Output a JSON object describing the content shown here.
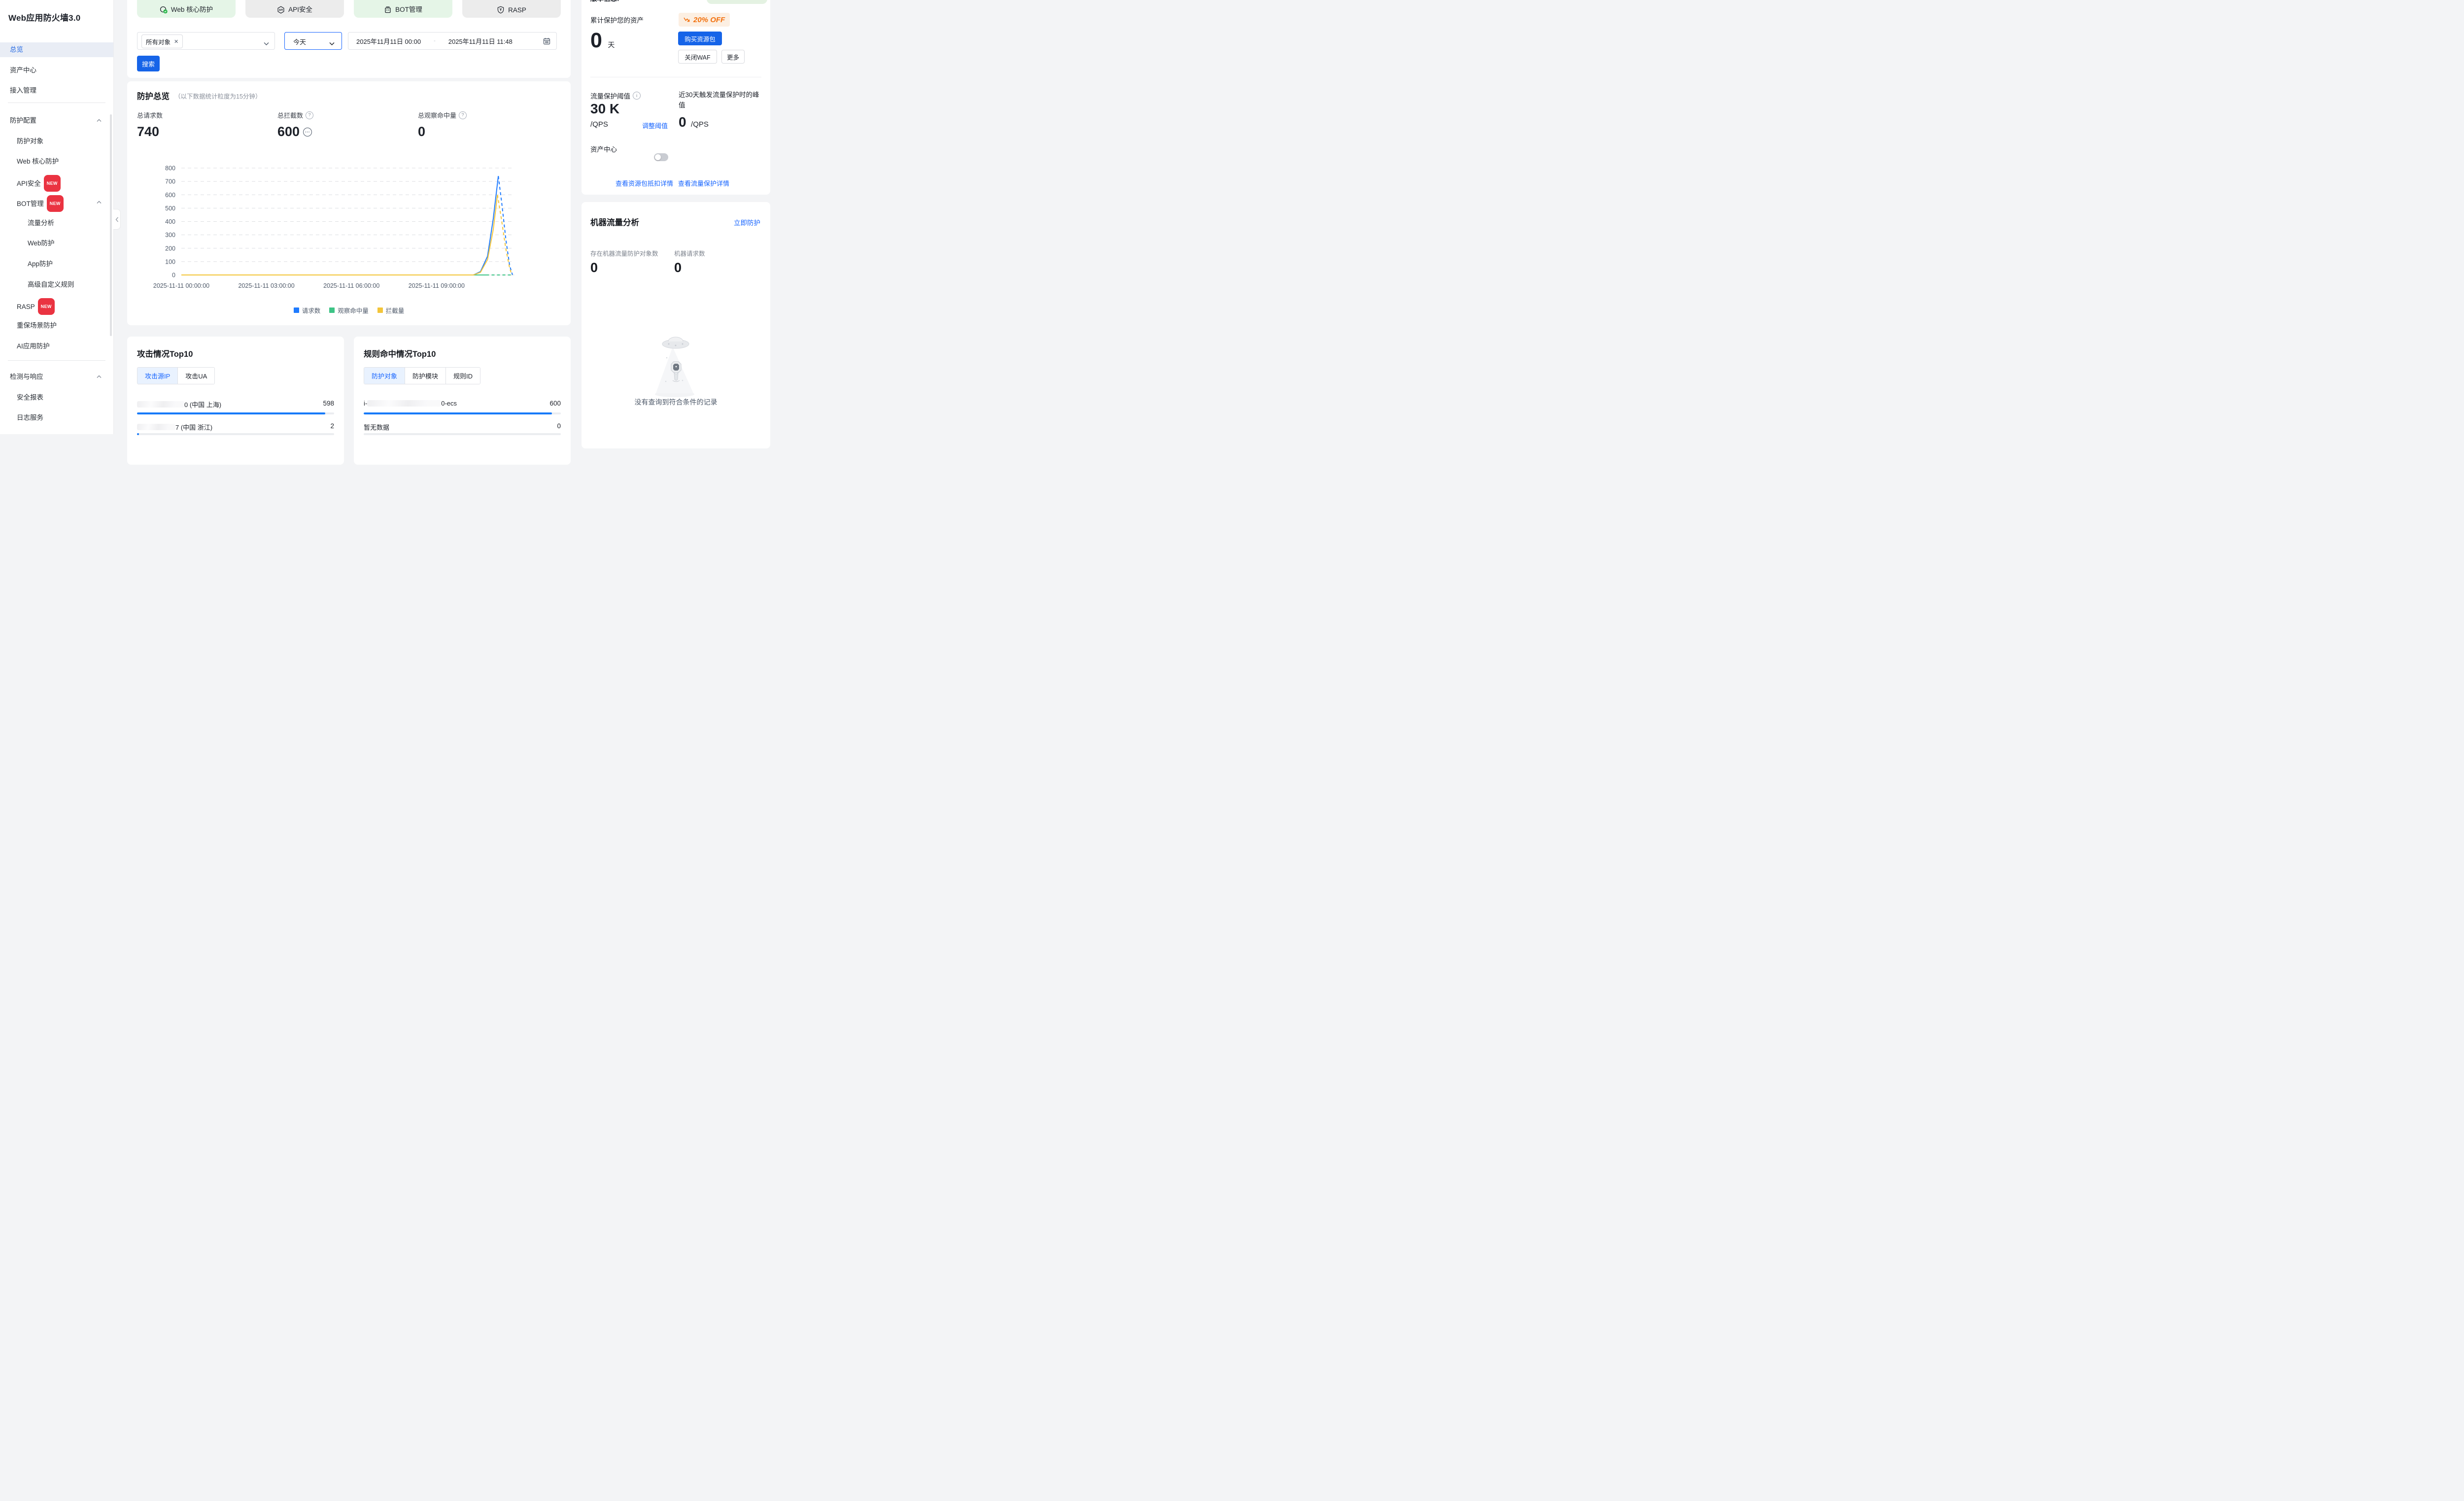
{
  "colors": {
    "primary": "#1664ff",
    "chart_blue": "#1f7bff",
    "chart_green": "#3ec486",
    "chart_yellow": "#f3c53a",
    "badge_red": "#ea3341",
    "promo_orange": "#f2700d",
    "bar_blue": "#177af9"
  },
  "sidebar": {
    "title": "Web应用防火墙3.0",
    "badge_new": "NEW",
    "items": {
      "overview": "总览",
      "asset_center": "资产中心",
      "access": "接入管理",
      "group_protection": "防护配置",
      "protect_objects": "防护对象",
      "web_core": "Web 核心防护",
      "api_security": "API安全",
      "bot": "BOT管理",
      "traffic_analysis": "流量分析",
      "web_protect": "Web防护",
      "app_protect": "App防护",
      "custom_rules": "高级自定义规则",
      "rasp": "RASP",
      "major_event": "重保场景防护",
      "ai_protect": "AI应用防护",
      "group_detect": "检测与响应",
      "security_report": "安全报表",
      "log_service": "日志服务"
    }
  },
  "product_tabs": {
    "web_core": "Web 核心防护",
    "api": "API安全",
    "bot": "BOT管理",
    "rasp": "RASP"
  },
  "filters": {
    "object_tag": "所有对象",
    "time_preset": "今天",
    "date_start": "2025年11月11日 00:00",
    "date_sep": "-",
    "date_end": "2025年11月11日 11:48",
    "search": "搜索"
  },
  "overview": {
    "title": "防护总览",
    "subtitle": "（以下数据统计粒度为15分钟）",
    "stats": {
      "requests_label": "总请求数",
      "requests_value": "740",
      "blocks_label": "总拦截数",
      "blocks_value": "600",
      "observe_label": "总观察命中量",
      "observe_value": "0"
    },
    "chart_data": {
      "type": "line",
      "x_ticks": [
        "2025-11-11 00:00:00",
        "2025-11-11 03:00:00",
        "2025-11-11 06:00:00",
        "2025-11-11 09:00:00"
      ],
      "x_tick_hours": [
        0,
        3,
        6,
        9
      ],
      "x_range_hours": [
        0,
        11.75
      ],
      "ylim": [
        0,
        800
      ],
      "y_ticks": [
        0,
        100,
        200,
        300,
        400,
        500,
        600,
        700,
        800
      ],
      "grid": "horizontal-dashed",
      "legend_position": "bottom",
      "series": [
        {
          "name": "请求数",
          "color": "#1f7bff",
          "peak": 740,
          "solid": [
            [
              0,
              0
            ],
            [
              10.3,
              0
            ],
            [
              10.55,
              25
            ],
            [
              10.8,
              140
            ],
            [
              11.0,
              420
            ],
            [
              11.18,
              740
            ]
          ],
          "dashed": [
            [
              11.18,
              740
            ],
            [
              11.3,
              540
            ],
            [
              11.45,
              260
            ],
            [
              11.58,
              70
            ],
            [
              11.68,
              0
            ]
          ]
        },
        {
          "name": "观察命中量",
          "color": "#3ec486",
          "peak": 0,
          "solid": [
            [
              0,
              0
            ],
            [
              10.75,
              0
            ]
          ],
          "dashed": [
            [
              10.75,
              0
            ],
            [
              11.68,
              0
            ]
          ]
        },
        {
          "name": "拦截量",
          "color": "#f3c53a",
          "peak": 600,
          "solid": [
            [
              0,
              0
            ],
            [
              10.3,
              0
            ],
            [
              10.55,
              20
            ],
            [
              10.8,
              115
            ],
            [
              11.0,
              340
            ],
            [
              11.15,
              600
            ]
          ],
          "dashed": [
            [
              11.15,
              600
            ],
            [
              11.28,
              430
            ],
            [
              11.44,
              200
            ],
            [
              11.58,
              50
            ],
            [
              11.66,
              0
            ]
          ]
        }
      ]
    }
  },
  "attack_top10": {
    "title": "攻击情况Top10",
    "tab_ip": "攻击源IP",
    "tab_ua": "攻击UA",
    "rows": [
      {
        "tail": "0 (中国 上海)",
        "value": "598",
        "bar_pct": 95.5,
        "masked": true
      },
      {
        "tail": "7 (中国 浙江)",
        "value": "2",
        "bar_pct": 1,
        "masked": true
      }
    ]
  },
  "rule_top10": {
    "title": "规则命中情况Top10",
    "tab_object": "防护对象",
    "tab_module": "防护模块",
    "tab_rule": "规则ID",
    "rows": [
      {
        "head": "i-",
        "tail": "0-ecs",
        "value": "600",
        "bar_pct": 95.5,
        "masked": true
      },
      {
        "label": "暂无数据",
        "value": "0",
        "bar_pct": 0,
        "masked": false
      }
    ]
  },
  "right_panel": {
    "clipped_header": "版本信息:",
    "asset_label": "累计保护您的资产",
    "promo": "20% OFF",
    "days_value": "0",
    "days_unit": "天",
    "buy": "购买资源包",
    "close_waf": "关闭WAF",
    "more": "更多",
    "threshold_label": "流量保护阈值",
    "threshold_value": "30 K",
    "threshold_unit": "/QPS",
    "adjust": "调整阈值",
    "peak_label": "近30天触发流量保护时的峰值",
    "peak_value": "0",
    "peak_unit": "/QPS",
    "asset_center": "资产中心",
    "toggle_state": "off",
    "link_resource": "查看资源包抵扣详情",
    "link_traffic": "查看流量保护详情"
  },
  "bot_analysis": {
    "title": "机器流量分析",
    "action": "立即防护",
    "objects_label": "存在机器流量防护对象数",
    "objects_value": "0",
    "requests_label": "机器请求数",
    "requests_value": "0",
    "empty": "没有查询到符合条件的记录"
  }
}
